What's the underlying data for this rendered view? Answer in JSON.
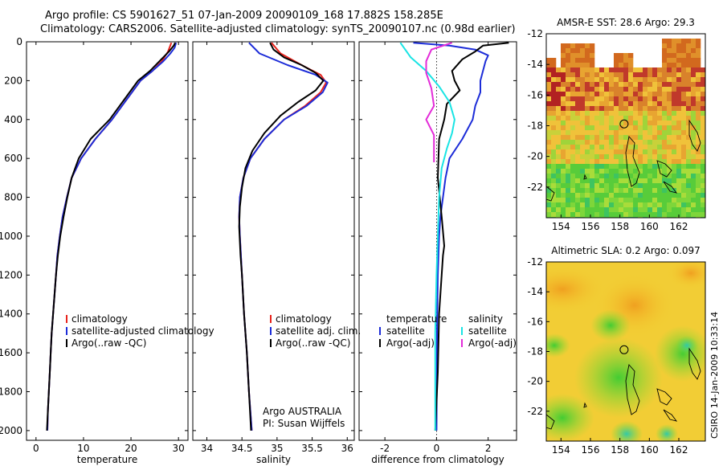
{
  "header": {
    "line1": "Argo profile: CS 5901627_51 07-Jan-2009 20090109_168 17.882S 158.285E",
    "line2": "Climatology: CARS2006. Satellite-adjusted climatology: synTS_20090107.nc (0.98d earlier)"
  },
  "side_note": "CSIRO 14-Jan-2009 10:33:14",
  "colors": {
    "climatology": "#e8231c",
    "satellite": "#1c2cd8",
    "argo": "#000000",
    "sal_satellite": "#19e4e4",
    "sal_argo": "#e32bd8"
  },
  "chart_data": [
    {
      "type": "line",
      "xlabel": "temperature",
      "ylabel": "",
      "xlim": [
        -2,
        32
      ],
      "ylim": [
        2050,
        0
      ],
      "xticks": [
        0,
        10,
        20,
        30
      ],
      "yticks": [
        0,
        200,
        400,
        600,
        800,
        1000,
        1200,
        1400,
        1600,
        1800,
        2000
      ],
      "legend": [
        "climatology",
        "satellite-adjusted climatology",
        "Argo(..raw -QC)"
      ],
      "series": [
        {
          "name": "climatology",
          "color": "#e8231c",
          "points": [
            [
              28.5,
              5
            ],
            [
              27.8,
              50
            ],
            [
              26.5,
              100
            ],
            [
              24.5,
              150
            ],
            [
              22.0,
              200
            ],
            [
              19.0,
              300
            ],
            [
              16.0,
              400
            ],
            [
              12.5,
              500
            ],
            [
              9.5,
              600
            ],
            [
              7.5,
              700
            ],
            [
              6.5,
              800
            ],
            [
              5.6,
              900
            ],
            [
              5.0,
              1000
            ],
            [
              4.5,
              1100
            ],
            [
              4.2,
              1200
            ],
            [
              3.9,
              1300
            ],
            [
              3.6,
              1400
            ],
            [
              3.3,
              1500
            ],
            [
              3.1,
              1600
            ],
            [
              2.9,
              1700
            ],
            [
              2.7,
              1800
            ],
            [
              2.5,
              1900
            ],
            [
              2.4,
              2000
            ]
          ]
        },
        {
          "name": "satellite-adjusted climatology",
          "color": "#1c2cd8",
          "points": [
            [
              29.5,
              5
            ],
            [
              29.2,
              30
            ],
            [
              28.3,
              60
            ],
            [
              26.8,
              100
            ],
            [
              24.5,
              150
            ],
            [
              22.0,
              200
            ],
            [
              19.0,
              300
            ],
            [
              16.0,
              400
            ],
            [
              12.5,
              500
            ],
            [
              9.5,
              600
            ],
            [
              7.5,
              700
            ],
            [
              6.5,
              800
            ],
            [
              5.6,
              900
            ],
            [
              5.0,
              1000
            ],
            [
              4.5,
              1100
            ],
            [
              4.2,
              1200
            ],
            [
              3.9,
              1300
            ],
            [
              3.6,
              1400
            ],
            [
              3.3,
              1500
            ],
            [
              3.1,
              1600
            ],
            [
              2.9,
              1700
            ],
            [
              2.7,
              1800
            ],
            [
              2.5,
              1900
            ],
            [
              2.4,
              2000
            ]
          ]
        },
        {
          "name": "Argo(..raw -QC)",
          "color": "#000000",
          "points": [
            [
              29.3,
              5
            ],
            [
              29.0,
              20
            ],
            [
              28.0,
              50
            ],
            [
              26.0,
              100
            ],
            [
              24.0,
              150
            ],
            [
              21.5,
              200
            ],
            [
              18.5,
              300
            ],
            [
              15.5,
              400
            ],
            [
              11.5,
              500
            ],
            [
              9.0,
              600
            ],
            [
              7.5,
              700
            ],
            [
              6.6,
              800
            ],
            [
              5.8,
              900
            ],
            [
              5.1,
              1000
            ],
            [
              4.6,
              1100
            ],
            [
              4.2,
              1200
            ],
            [
              3.9,
              1300
            ],
            [
              3.6,
              1400
            ],
            [
              3.3,
              1500
            ],
            [
              3.1,
              1600
            ],
            [
              2.9,
              1700
            ],
            [
              2.7,
              1800
            ],
            [
              2.5,
              1900
            ],
            [
              2.3,
              2000
            ]
          ]
        }
      ]
    },
    {
      "type": "line",
      "xlabel": "salinity",
      "ylabel": "",
      "xlim": [
        33.8,
        36.1
      ],
      "ylim": [
        2050,
        0
      ],
      "xticks": [
        34,
        34.5,
        35,
        35.5,
        36
      ],
      "yticks": [
        0,
        200,
        400,
        600,
        800,
        1000,
        1200,
        1400,
        1600,
        1800,
        2000
      ],
      "legend": [
        "climatology",
        "satellite adj. clim.",
        "Argo(..raw -QC)"
      ],
      "annotation": [
        "Argo AUSTRALIA",
        "PI: Susan Wijffels"
      ],
      "series": [
        {
          "name": "climatology",
          "color": "#e8231c",
          "points": [
            [
              34.92,
              5
            ],
            [
              35.05,
              60
            ],
            [
              35.35,
              120
            ],
            [
              35.62,
              170
            ],
            [
              35.7,
              210
            ],
            [
              35.62,
              260
            ],
            [
              35.4,
              330
            ],
            [
              35.1,
              400
            ],
            [
              34.82,
              500
            ],
            [
              34.62,
              600
            ],
            [
              34.52,
              700
            ],
            [
              34.47,
              800
            ],
            [
              34.46,
              900
            ],
            [
              34.47,
              1000
            ],
            [
              34.5,
              1200
            ],
            [
              34.53,
              1400
            ],
            [
              34.57,
              1600
            ],
            [
              34.6,
              1800
            ],
            [
              34.64,
              2000
            ]
          ]
        },
        {
          "name": "satellite adj. clim.",
          "color": "#1c2cd8",
          "points": [
            [
              34.6,
              5
            ],
            [
              34.75,
              60
            ],
            [
              35.15,
              120
            ],
            [
              35.55,
              170
            ],
            [
              35.72,
              210
            ],
            [
              35.65,
              260
            ],
            [
              35.42,
              330
            ],
            [
              35.1,
              400
            ],
            [
              34.82,
              500
            ],
            [
              34.62,
              600
            ],
            [
              34.52,
              700
            ],
            [
              34.47,
              800
            ],
            [
              34.46,
              900
            ],
            [
              34.47,
              1000
            ],
            [
              34.5,
              1200
            ],
            [
              34.53,
              1400
            ],
            [
              34.57,
              1600
            ],
            [
              34.6,
              1800
            ],
            [
              34.64,
              2000
            ]
          ]
        },
        {
          "name": "Argo(..raw -QC)",
          "color": "#000000",
          "points": [
            [
              34.9,
              5
            ],
            [
              34.95,
              40
            ],
            [
              35.1,
              80
            ],
            [
              35.35,
              120
            ],
            [
              35.55,
              160
            ],
            [
              35.66,
              200
            ],
            [
              35.55,
              250
            ],
            [
              35.3,
              310
            ],
            [
              35.05,
              380
            ],
            [
              34.82,
              470
            ],
            [
              34.65,
              560
            ],
            [
              34.55,
              650
            ],
            [
              34.5,
              750
            ],
            [
              34.47,
              850
            ],
            [
              34.46,
              950
            ],
            [
              34.48,
              1100
            ],
            [
              34.5,
              1200
            ],
            [
              34.53,
              1400
            ],
            [
              34.57,
              1600
            ],
            [
              34.6,
              1800
            ],
            [
              34.63,
              2000
            ]
          ]
        }
      ]
    },
    {
      "type": "line",
      "xlabel": "difference from climatology",
      "ylabel": "",
      "xlim": [
        -3,
        3.1
      ],
      "ylim": [
        2050,
        0
      ],
      "xticks": [
        -2,
        0,
        2
      ],
      "yticks": [
        0,
        200,
        400,
        600,
        800,
        1000,
        1200,
        1400,
        1600,
        1800,
        2000
      ],
      "legend_title_left": "temperature",
      "legend_title_right": "salinity",
      "legend": [
        "satellite",
        "Argo(-adj)",
        "satellite",
        "Argo(-adj)"
      ],
      "series": [
        {
          "name": "satellite",
          "color": "#1c2cd8",
          "points": [
            [
              -0.9,
              5
            ],
            [
              0.5,
              20
            ],
            [
              1.5,
              40
            ],
            [
              2.0,
              70
            ],
            [
              1.9,
              100
            ],
            [
              1.8,
              150
            ],
            [
              1.7,
              200
            ],
            [
              1.7,
              260
            ],
            [
              1.5,
              330
            ],
            [
              1.4,
              400
            ],
            [
              1.0,
              500
            ],
            [
              0.5,
              600
            ],
            [
              0.35,
              700
            ],
            [
              0.25,
              800
            ],
            [
              0.15,
              900
            ],
            [
              0.1,
              1000
            ],
            [
              0.05,
              1200
            ],
            [
              0.02,
              1500
            ],
            [
              0.0,
              2000
            ]
          ]
        },
        {
          "name": "Argo(-adj)",
          "color": "#000000",
          "points": [
            [
              2.8,
              5
            ],
            [
              1.8,
              20
            ],
            [
              1.5,
              50
            ],
            [
              1.0,
              90
            ],
            [
              0.6,
              150
            ],
            [
              0.7,
              200
            ],
            [
              0.9,
              250
            ],
            [
              0.4,
              320
            ],
            [
              0.3,
              400
            ],
            [
              0.1,
              500
            ],
            [
              0.05,
              700
            ],
            [
              0.2,
              900
            ],
            [
              0.3,
              1050
            ],
            [
              0.25,
              1100
            ],
            [
              0.2,
              1200
            ],
            [
              0.1,
              1400
            ],
            [
              0.05,
              1700
            ],
            [
              -0.05,
              2000
            ]
          ]
        },
        {
          "name": "satellite",
          "color": "#19e4e4",
          "points": [
            [
              -1.4,
              5
            ],
            [
              -1.0,
              80
            ],
            [
              -0.4,
              150
            ],
            [
              0.1,
              230
            ],
            [
              0.5,
              310
            ],
            [
              0.7,
              400
            ],
            [
              0.6,
              470
            ],
            [
              0.4,
              550
            ],
            [
              0.2,
              650
            ],
            [
              0.1,
              800
            ],
            [
              0.05,
              1000
            ],
            [
              0.0,
              1200
            ],
            [
              -0.05,
              1500
            ],
            [
              -0.05,
              2000
            ]
          ]
        },
        {
          "name": "Argo(-adj)",
          "color": "#e32bd8",
          "points": [
            [
              0.6,
              5
            ],
            [
              -0.2,
              40
            ],
            [
              -0.4,
              100
            ],
            [
              -0.4,
              160
            ],
            [
              -0.2,
              240
            ],
            [
              -0.1,
              330
            ],
            [
              -0.4,
              400
            ],
            [
              -0.1,
              480
            ],
            [
              -0.1,
              560
            ],
            [
              -0.1,
              620
            ]
          ]
        }
      ]
    },
    {
      "type": "heatmap",
      "title": "AMSR-E SST: 28.6  Argo: 29.3",
      "xlim": [
        153,
        163.8
      ],
      "ylim": [
        -24,
        -12
      ],
      "xticks": [
        154,
        156,
        158,
        160,
        162
      ],
      "yticks": [
        -12,
        -14,
        -16,
        -18,
        -20,
        -22
      ]
    },
    {
      "type": "heatmap",
      "title": "Altimetric SLA: 0.2  Argo: 0.097",
      "xlim": [
        153,
        163.8
      ],
      "ylim": [
        -24,
        -12
      ],
      "xticks": [
        154,
        156,
        158,
        160,
        162
      ],
      "yticks": [
        -12,
        -14,
        -16,
        -18,
        -20,
        -22
      ]
    }
  ]
}
